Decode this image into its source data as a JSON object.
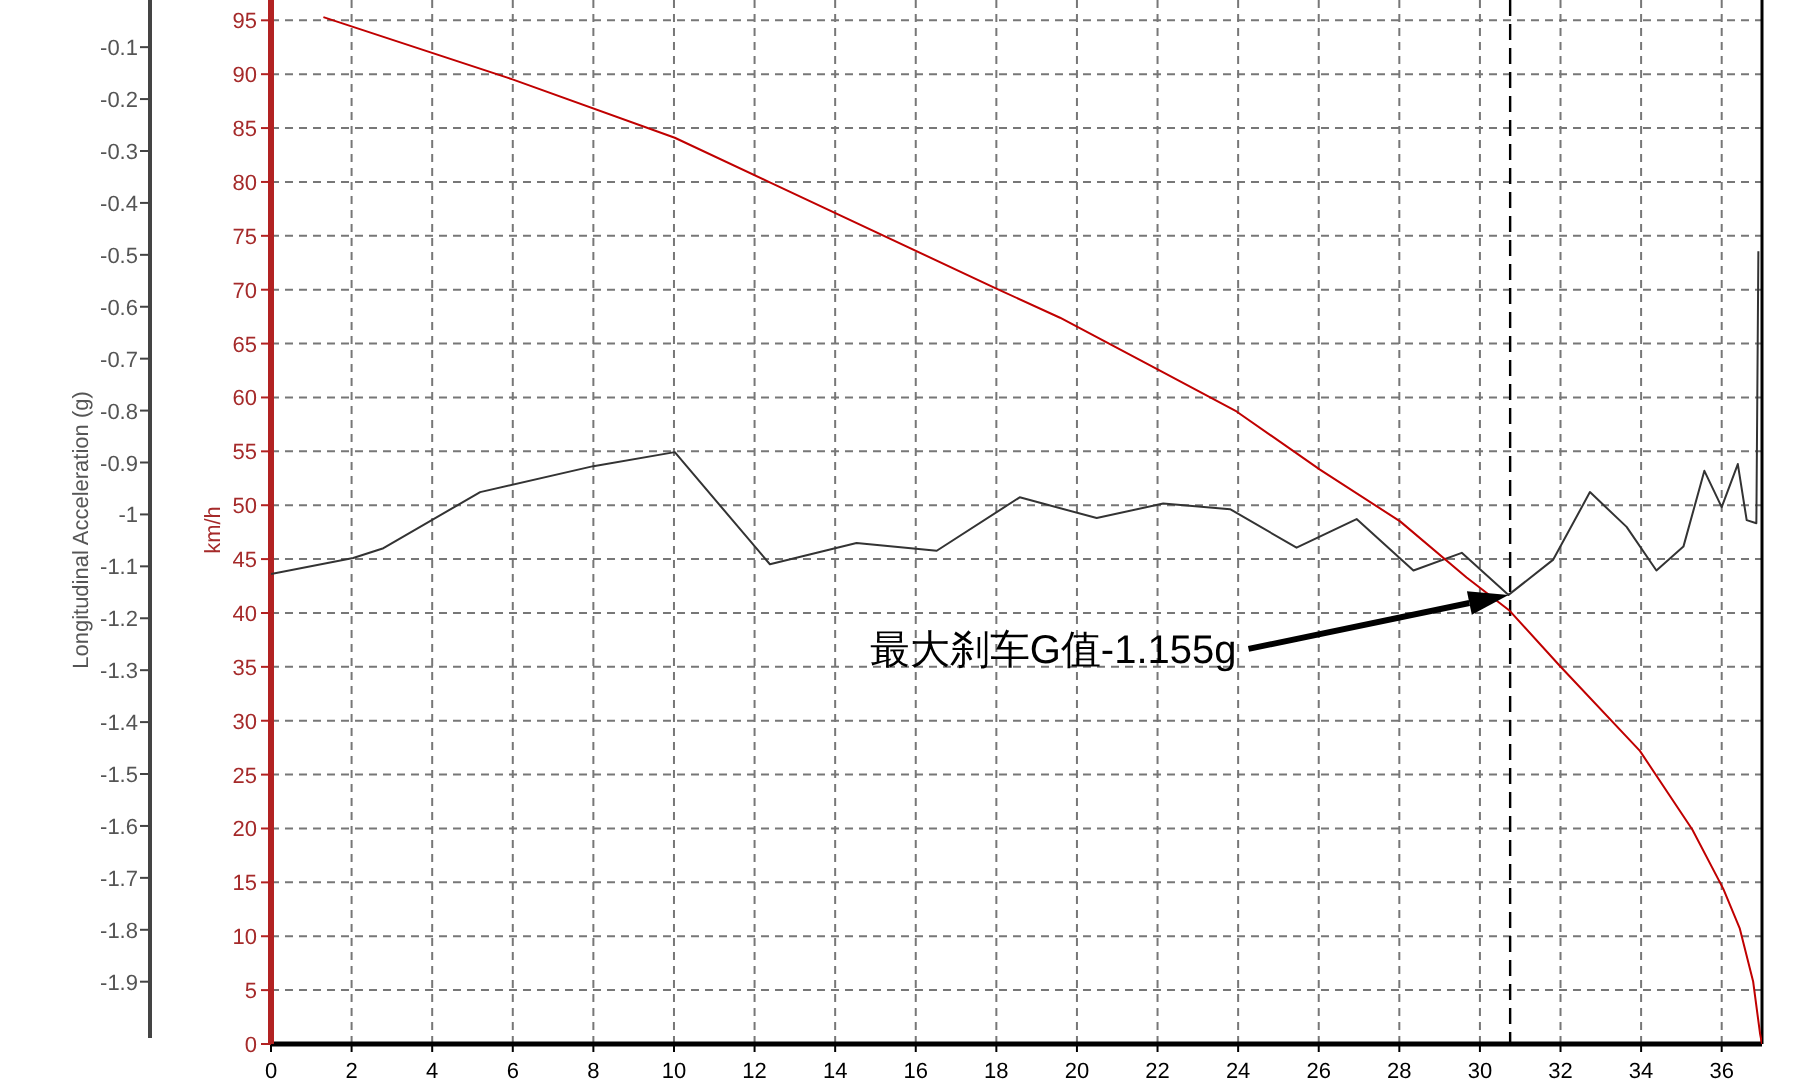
{
  "chart_data": {
    "type": "line",
    "ylabel": "Longitudinal Acceleration (g)",
    "y2label": "km/h",
    "xlim": [
      0,
      37
    ],
    "xticks": [
      0,
      2,
      4,
      6,
      8,
      10,
      12,
      14,
      16,
      18,
      20,
      22,
      24,
      26,
      28,
      30,
      32,
      34,
      36
    ],
    "ylim": [
      -2.02,
      -0.04
    ],
    "yticks": [
      -0.1,
      -0.2,
      -0.3,
      -0.4,
      -0.5,
      -0.6,
      -0.7,
      -0.8,
      -0.9,
      -1,
      -1.1,
      -1.2,
      -1.3,
      -1.4,
      -1.5,
      -1.6,
      -1.7,
      -1.8,
      -1.9
    ],
    "y2lim": [
      0,
      95.4
    ],
    "y2ticks": [
      0,
      5,
      10,
      15,
      20,
      25,
      30,
      35,
      40,
      45,
      50,
      55,
      60,
      65,
      70,
      75,
      80,
      85,
      90,
      95
    ],
    "grid": true,
    "series": [
      {
        "type": "line",
        "axis": "y",
        "color": "#333333",
        "x": [
          0,
          2.04,
          2.79,
          5.19,
          8.0,
          10.02,
          12.38,
          14.53,
          16.52,
          18.58,
          20.49,
          22.14,
          23.8,
          25.45,
          26.94,
          28.35,
          29.55,
          30.71,
          31.82,
          32.73,
          33.64,
          34.38,
          35.05,
          35.57,
          36.0,
          36.4,
          36.62,
          36.86,
          36.91
        ],
        "values": [
          -1.115,
          -1.084,
          -1.065,
          -0.957,
          -0.907,
          -0.88,
          -1.096,
          -1.055,
          -1.07,
          -0.967,
          -1.007,
          -0.979,
          -0.99,
          -1.064,
          -1.009,
          -1.108,
          -1.074,
          -1.155,
          -1.087,
          -0.957,
          -1.024,
          -1.108,
          -1.062,
          -0.916,
          -0.986,
          -0.903,
          -1.011,
          -1.017,
          -0.493
        ]
      },
      {
        "type": "line",
        "axis": "y2",
        "color": "#c00000",
        "x": [
          1.3,
          6.01,
          10.02,
          12.3,
          18.0,
          19.58,
          22.06,
          23.96,
          26.03,
          28.02,
          29.67,
          30.74,
          31.98,
          33.97,
          35.27,
          36.04,
          36.45,
          36.78,
          36.95,
          37.0
        ],
        "values": [
          95.3,
          89.5,
          84.1,
          80.1,
          70.1,
          67.4,
          62.5,
          58.7,
          53.3,
          48.5,
          43.3,
          40.2,
          35.1,
          27.2,
          19.9,
          14.4,
          10.7,
          5.8,
          1.0,
          0
        ]
      }
    ],
    "ref_lines": [
      {
        "axis": "x",
        "value": 30.75,
        "color": "#000000",
        "line_style": "dashed"
      }
    ],
    "annotations": [
      "最大刹车G值-1.155g"
    ]
  }
}
